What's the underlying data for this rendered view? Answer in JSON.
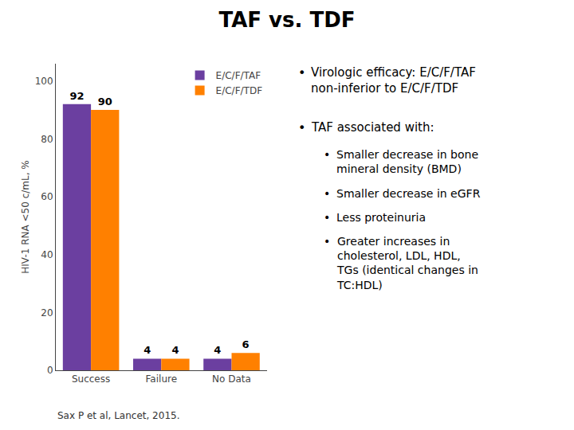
{
  "chart_data": {
    "type": "bar",
    "title": "TAF vs. TDF",
    "categories": [
      "Success",
      "Failure",
      "No Data"
    ],
    "series": [
      {
        "name": "E/C/F/TAF",
        "color": "#6B3FA0",
        "values": [
          92,
          4,
          4
        ]
      },
      {
        "name": "E/C/F/TDF",
        "color": "#FF8000",
        "values": [
          90,
          4,
          6
        ]
      }
    ],
    "ylabel": "HIV-1 RNA <50 c/mL, %",
    "ylim": [
      0,
      106
    ],
    "yticks": [
      0,
      20,
      40,
      60,
      80,
      100
    ],
    "grid": false,
    "legend": "upper right",
    "data_labels": true,
    "annotations": [
      {
        "text": "Sax P et al, Lancet, 2015."
      },
      {
        "bullet": "•",
        "text": "Virologic efficacy: E/C/F/TAF\nnon-inferior to E/C/F/TDF"
      },
      {
        "bullet": "•",
        "text": "TAF associated with:",
        "items": [
          {
            "bullet": "•",
            "text": "Smaller decrease in bone\nmineral density (BMD)"
          },
          {
            "bullet": "•",
            "text": "Smaller decrease in eGFR"
          },
          {
            "bullet": "•",
            "text": "Less proteinuria"
          },
          {
            "bullet": "•",
            "text": "Greater increases in\ncholesterol, LDL, HDL,\nTGs (identical changes in\nTC:HDL)"
          }
        ]
      }
    ]
  }
}
